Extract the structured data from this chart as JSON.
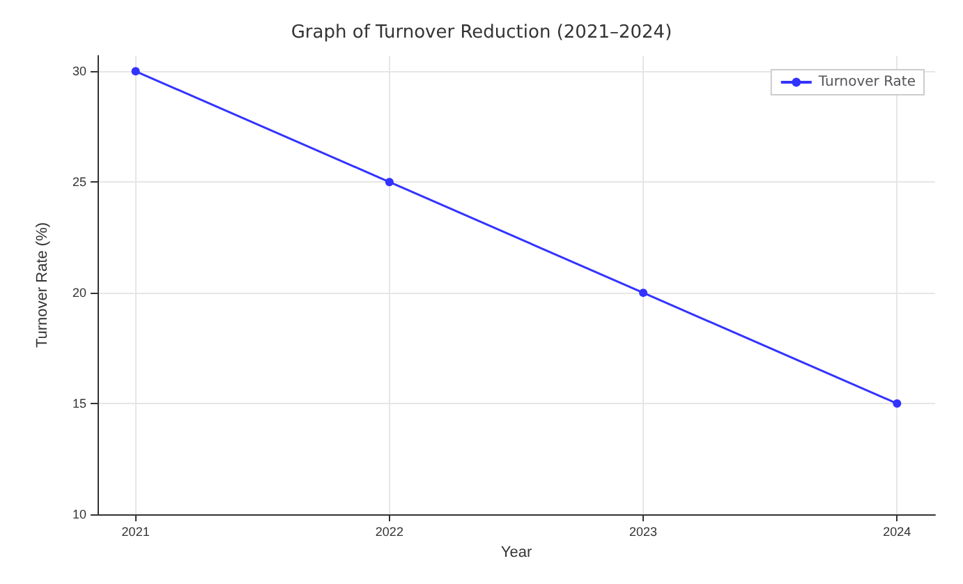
{
  "chart_data": {
    "type": "line",
    "title": "Graph of Turnover Reduction (2021–2024)",
    "xlabel": "Year",
    "ylabel": "Turnover Rate (%)",
    "x": [
      2021,
      2022,
      2023,
      2024
    ],
    "series": [
      {
        "name": "Turnover Rate",
        "color": "#3333ff",
        "values": [
          30,
          25,
          20,
          15
        ]
      }
    ],
    "xlim": [
      2020.85,
      2024.15
    ],
    "xticks": [
      2021,
      2022,
      2023,
      2024
    ],
    "ylim": [
      10,
      30.7
    ],
    "yticks": [
      10,
      15,
      20,
      25,
      30
    ],
    "grid": true,
    "legend": "top right",
    "marker": "circle",
    "line_style": "solid"
  }
}
